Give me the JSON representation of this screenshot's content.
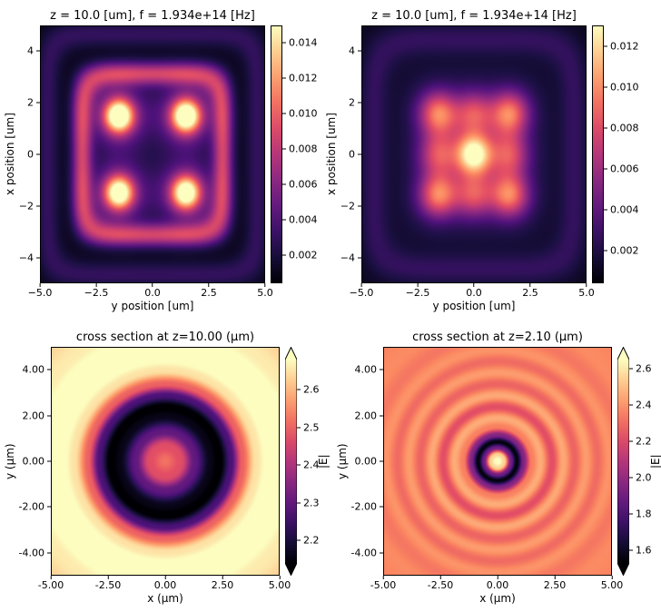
{
  "figure": {
    "background": "#ffffff",
    "text_color": "#000000",
    "colormap_name": "magma",
    "colormap_anchors": [
      "#000004",
      "#1c1044",
      "#4f127b",
      "#812581",
      "#b5367a",
      "#e55064",
      "#fb8761",
      "#fec287",
      "#fcfdbf"
    ]
  },
  "chart_data": [
    {
      "type": "heatmap",
      "panel": "top-left",
      "title": "z = 10.0 [um], f = 1.934e+14 [Hz]",
      "xlabel": "y position [um]",
      "ylabel": "x position [um]",
      "xlim": [
        -5,
        5
      ],
      "ylim": [
        -5,
        5
      ],
      "xticks": {
        "values": [
          -5,
          -2.5,
          0,
          2.5,
          5
        ],
        "labels": [
          "−5.0",
          "−2.5",
          "0.0",
          "2.5",
          "5.0"
        ]
      },
      "yticks": {
        "values": [
          4,
          2,
          0,
          -2,
          -4
        ],
        "labels": [
          "4",
          "2",
          "0",
          "−2",
          "−4"
        ]
      },
      "colorbar": {
        "vmin": 0.0004,
        "vmax": 0.015,
        "extend": false,
        "label": "",
        "ticks": {
          "values": [
            0.014,
            0.012,
            0.01,
            0.008,
            0.006,
            0.004,
            0.002
          ],
          "labels": [
            "0.014",
            "0.012",
            "0.010",
            "0.008",
            "0.006",
            "0.004",
            "0.002"
          ]
        }
      },
      "field": {
        "kind": "spots",
        "base": 0.04,
        "spots": [
          {
            "x": -1.5,
            "y": 1.5,
            "amp": 0.95,
            "sigma": 0.45
          },
          {
            "x": 1.5,
            "y": 1.5,
            "amp": 0.95,
            "sigma": 0.45
          },
          {
            "x": -1.5,
            "y": -1.5,
            "amp": 0.88,
            "sigma": 0.45
          },
          {
            "x": 1.5,
            "y": -1.5,
            "amp": 0.88,
            "sigma": 0.45
          },
          {
            "x": -1.5,
            "y": 1.5,
            "amp": 0.34,
            "sigma": 0.95
          },
          {
            "x": 1.5,
            "y": 1.5,
            "amp": 0.34,
            "sigma": 0.95
          },
          {
            "x": -1.5,
            "y": -1.5,
            "amp": 0.32,
            "sigma": 0.95
          },
          {
            "x": 1.5,
            "y": -1.5,
            "amp": 0.32,
            "sigma": 0.95
          }
        ],
        "rings": [
          {
            "x": 0,
            "y": 0,
            "r": 3.15,
            "w": 0.45,
            "amp": 0.5,
            "p": 6
          },
          {
            "x": 0,
            "y": 0,
            "r": 4.7,
            "w": 0.5,
            "amp": 0.14,
            "p": 8
          }
        ]
      }
    },
    {
      "type": "heatmap",
      "panel": "top-right",
      "title": "z = 10.0 [um], f = 1.934e+14 [Hz]",
      "xlabel": "y position [um]",
      "ylabel": "x position [um]",
      "xlim": [
        -5,
        5
      ],
      "ylim": [
        -5,
        5
      ],
      "xticks": {
        "values": [
          -5,
          -2.5,
          0,
          2.5,
          5
        ],
        "labels": [
          "−5.0",
          "−2.5",
          "0.0",
          "2.5",
          "5.0"
        ]
      },
      "yticks": {
        "values": [
          4,
          2,
          0,
          -2,
          -4
        ],
        "labels": [
          "4",
          "2",
          "0",
          "−2",
          "−4"
        ]
      },
      "colorbar": {
        "vmin": 0.0004,
        "vmax": 0.013,
        "extend": false,
        "label": "",
        "ticks": {
          "values": [
            0.012,
            0.01,
            0.008,
            0.006,
            0.004,
            0.002
          ],
          "labels": [
            "0.012",
            "0.010",
            "0.008",
            "0.006",
            "0.004",
            "0.002"
          ]
        }
      },
      "field": {
        "kind": "spots",
        "base": 0.05,
        "spots": [
          {
            "x": 0,
            "y": 0,
            "amp": 0.8,
            "sigma": 0.55
          },
          {
            "x": 1.6,
            "y": 1.6,
            "amp": 0.55,
            "sigma": 0.6
          },
          {
            "x": -1.6,
            "y": 1.6,
            "amp": 0.55,
            "sigma": 0.6
          },
          {
            "x": 1.6,
            "y": -1.6,
            "amp": 0.55,
            "sigma": 0.6
          },
          {
            "x": -1.6,
            "y": -1.6,
            "amp": 0.55,
            "sigma": 0.6
          },
          {
            "x": 0,
            "y": 1.6,
            "amp": 0.4,
            "sigma": 0.6
          },
          {
            "x": 0,
            "y": -1.6,
            "amp": 0.4,
            "sigma": 0.6
          },
          {
            "x": 1.6,
            "y": 0,
            "amp": 0.4,
            "sigma": 0.6
          },
          {
            "x": -1.6,
            "y": 0,
            "amp": 0.4,
            "sigma": 0.6
          },
          {
            "x": 0,
            "y": 0,
            "amp": 0.25,
            "sigma": 1.9,
            "p": 4
          }
        ],
        "rings": [
          {
            "x": 0,
            "y": 0,
            "r": 4.5,
            "w": 0.6,
            "amp": 0.12,
            "p": 6
          }
        ]
      }
    },
    {
      "type": "heatmap",
      "panel": "bottom-left",
      "title": "cross section at z=10.00 (μm)",
      "xlabel": "x (μm)",
      "ylabel": "y (μm)",
      "xlim": [
        -5,
        5
      ],
      "ylim": [
        -5,
        5
      ],
      "xticks": {
        "values": [
          -5,
          -2.5,
          0,
          2.5,
          5
        ],
        "labels": [
          "-5.00",
          "-2.50",
          "0.00",
          "2.50",
          "5.00"
        ]
      },
      "yticks": {
        "values": [
          4,
          2,
          0,
          -2,
          -4
        ],
        "labels": [
          "4.00",
          "2.00",
          "0.00",
          "-2.00",
          "-4.00"
        ]
      },
      "colorbar": {
        "vmin": 2.14,
        "vmax": 2.68,
        "extend": true,
        "label": "|E|",
        "ticks": {
          "values": [
            2.6,
            2.5,
            2.4,
            2.3,
            2.2
          ],
          "labels": [
            "2.6",
            "2.5",
            "2.4",
            "2.3",
            "2.2"
          ]
        }
      },
      "field": {
        "kind": "radial",
        "profile": [
          [
            0,
            2.52
          ],
          [
            0.7,
            2.47
          ],
          [
            1.3,
            2.3
          ],
          [
            2.0,
            2.16
          ],
          [
            2.4,
            2.13
          ],
          [
            2.9,
            2.27
          ],
          [
            3.4,
            2.5
          ],
          [
            4.0,
            2.65
          ],
          [
            4.6,
            2.7
          ],
          [
            5.3,
            2.7
          ],
          [
            6.1,
            2.66
          ],
          [
            7.2,
            2.63
          ]
        ]
      }
    },
    {
      "type": "heatmap",
      "panel": "bottom-right",
      "title": "cross section at z=2.10 (μm)",
      "xlabel": "x (μm)",
      "ylabel": "y (μm)",
      "xlim": [
        -5,
        5
      ],
      "ylim": [
        -5,
        5
      ],
      "xticks": {
        "values": [
          -5,
          -2.5,
          0,
          2.5,
          5
        ],
        "labels": [
          "-5.00",
          "-2.50",
          "0.00",
          "2.50",
          "5.00"
        ]
      },
      "yticks": {
        "values": [
          4,
          2,
          0,
          -2,
          -4
        ],
        "labels": [
          "4.00",
          "2.00",
          "0.00",
          "-2.00",
          "-4.00"
        ]
      },
      "colorbar": {
        "vmin": 1.53,
        "vmax": 2.65,
        "extend": true,
        "label": "|E|",
        "ticks": {
          "values": [
            2.6,
            2.4,
            2.2,
            2.0,
            1.8,
            1.6
          ],
          "labels": [
            "2.6",
            "2.4",
            "2.2",
            "2.0",
            "1.8",
            "1.6"
          ]
        }
      },
      "field": {
        "kind": "radial",
        "profile": [
          [
            0,
            2.72
          ],
          [
            0.3,
            2.55
          ],
          [
            0.6,
            1.9
          ],
          [
            0.85,
            1.55
          ],
          [
            1.15,
            1.95
          ],
          [
            1.5,
            2.35
          ],
          [
            1.9,
            2.46
          ],
          [
            2.4,
            2.22
          ],
          [
            2.9,
            2.45
          ],
          [
            3.4,
            2.28
          ],
          [
            3.9,
            2.42
          ],
          [
            4.4,
            2.3
          ],
          [
            4.9,
            2.4
          ],
          [
            5.5,
            2.33
          ],
          [
            6.2,
            2.38
          ],
          [
            7.2,
            2.36
          ]
        ]
      }
    }
  ]
}
